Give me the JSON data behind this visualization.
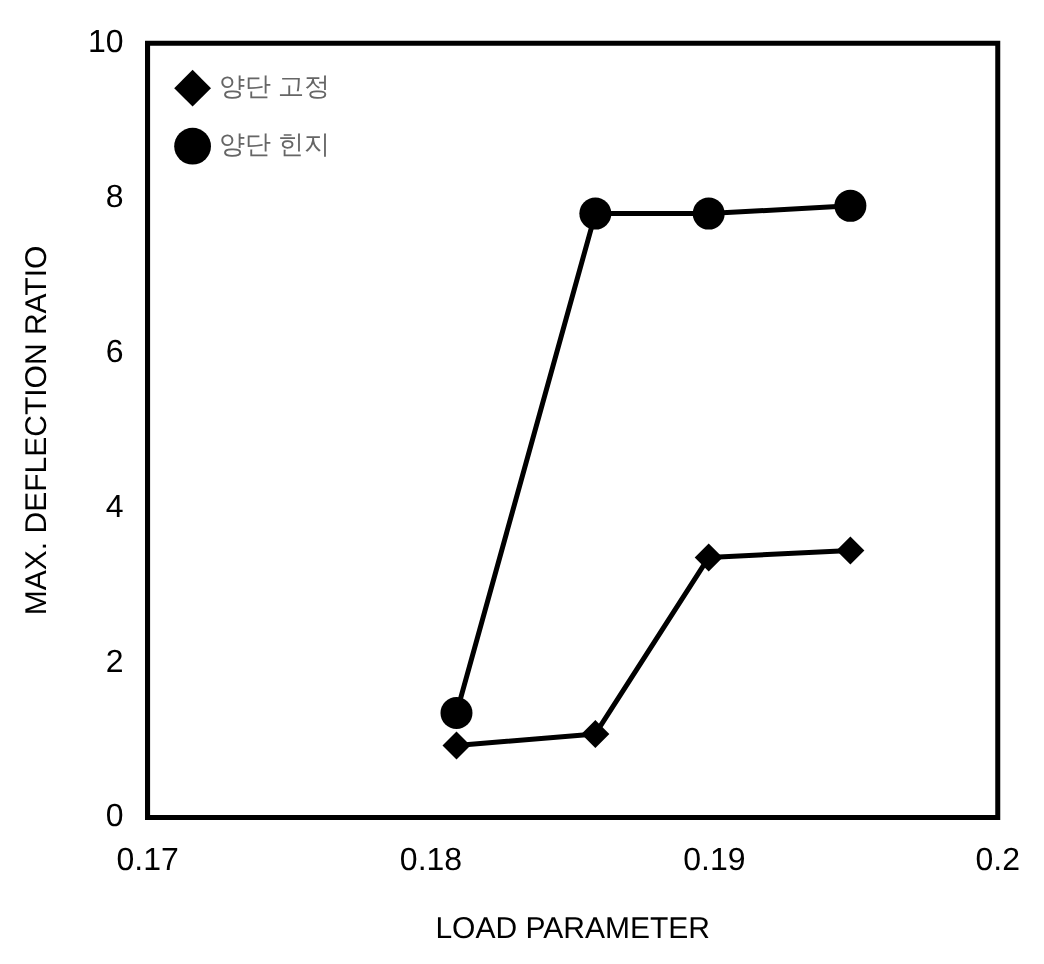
{
  "chart_data": {
    "type": "line",
    "xlabel": "LOAD PARAMETER",
    "ylabel": "MAX. DEFLECTION RATIO",
    "xlim": [
      0.17,
      0.2
    ],
    "xticks": [
      0.17,
      0.18,
      0.19,
      0.2
    ],
    "ylim": [
      0,
      10
    ],
    "yticks": [
      0,
      2,
      4,
      6,
      8,
      10
    ],
    "grid": false,
    "legend": "top left",
    "line_style": "solid",
    "series": [
      {
        "name": "양단 고정",
        "color": "#000000",
        "marker": "diamond",
        "x": [
          0.1809,
          0.1858,
          0.1898,
          0.1948
        ],
        "values": [
          0.93,
          1.08,
          3.36,
          3.45
        ]
      },
      {
        "name": "양단 힌지",
        "color": "#000000",
        "marker": "circle",
        "x": [
          0.1809,
          0.1858,
          0.1898,
          0.1948
        ],
        "values": [
          1.35,
          7.8,
          7.8,
          7.9
        ]
      }
    ]
  }
}
